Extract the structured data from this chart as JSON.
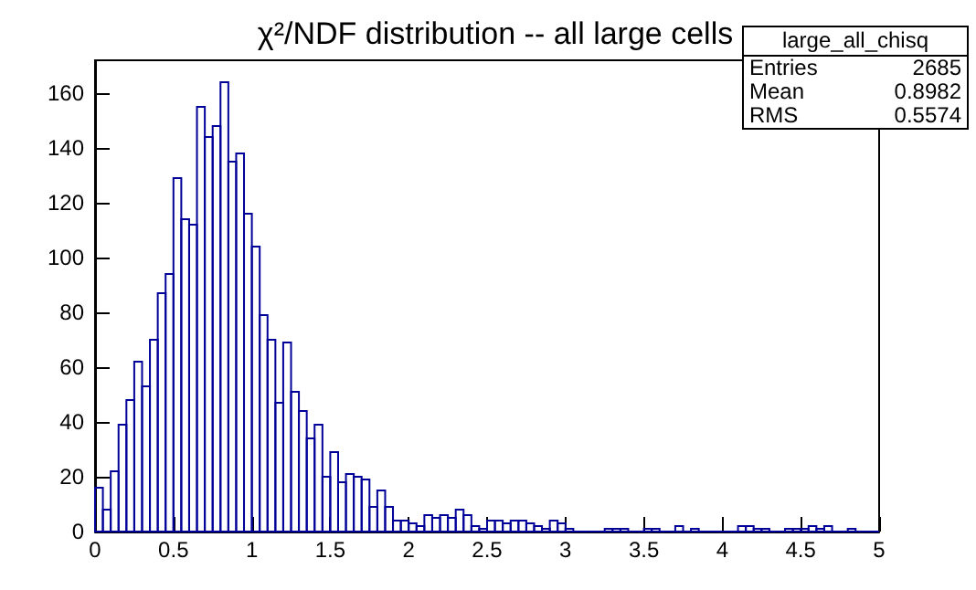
{
  "chart_data": {
    "type": "histogram",
    "title": "χ²/NDF distribution -- all large cells",
    "bins": [
      0,
      0.05,
      0.1,
      0.15,
      0.2,
      0.25,
      0.3,
      0.35,
      0.4,
      0.45,
      0.5,
      0.55,
      0.6,
      0.65,
      0.7,
      0.75,
      0.8,
      0.85,
      0.9,
      0.95,
      1,
      1.05,
      1.1,
      1.15,
      1.2,
      1.25,
      1.3,
      1.35,
      1.4,
      1.45,
      1.5,
      1.55,
      1.6,
      1.65,
      1.7,
      1.75,
      1.8,
      1.85,
      1.9,
      1.95,
      2,
      2.05,
      2.1,
      2.15,
      2.2,
      2.25,
      2.3,
      2.35,
      2.4,
      2.45,
      2.5,
      2.55,
      2.6,
      2.65,
      2.7,
      2.75,
      2.8,
      2.85,
      2.9,
      2.95,
      3,
      3.05,
      3.1,
      3.15,
      3.2,
      3.25,
      3.3,
      3.35,
      3.4,
      3.45,
      3.5,
      3.55,
      3.6,
      3.65,
      3.7,
      3.75,
      3.8,
      3.85,
      3.9,
      3.95,
      4,
      4.05,
      4.1,
      4.15,
      4.2,
      4.25,
      4.3,
      4.35,
      4.4,
      4.45,
      4.5,
      4.55,
      4.6,
      4.65,
      4.7,
      4.75,
      4.8,
      4.85,
      4.9,
      4.95,
      5
    ],
    "values": [
      16,
      8,
      22,
      39,
      48,
      62,
      53,
      70,
      87,
      94,
      129,
      114,
      112,
      155,
      144,
      148,
      164,
      135,
      138,
      116,
      104,
      79,
      70,
      47,
      69,
      51,
      44,
      34,
      39,
      20,
      29,
      18,
      21,
      20,
      19,
      9,
      15,
      9,
      4,
      4,
      3,
      2,
      6,
      5,
      6,
      5,
      8,
      6,
      2,
      1,
      4,
      4,
      3,
      4,
      4,
      3,
      2,
      1,
      4,
      3,
      1,
      0,
      0,
      0,
      0,
      1,
      1,
      1,
      0,
      0,
      1,
      1,
      0,
      0,
      2,
      0,
      1,
      0,
      0,
      0,
      0,
      0,
      2,
      2,
      1,
      1,
      0,
      0,
      1,
      1,
      1,
      2,
      1,
      2,
      0,
      0,
      1,
      0,
      0,
      0
    ],
    "color": "#000099",
    "xlim": [
      0,
      5
    ],
    "xticks": [
      0,
      0.5,
      1,
      1.5,
      2,
      2.5,
      3,
      3.5,
      4,
      4.5,
      5
    ],
    "ylim": [
      0,
      172
    ],
    "yticks": [
      0,
      20,
      40,
      60,
      80,
      100,
      120,
      140,
      160
    ],
    "grid": false,
    "annotations": [
      "large_all_chisq",
      "Entries",
      "2685",
      "Mean",
      "0.8982",
      "RMS",
      "0.5574"
    ]
  }
}
